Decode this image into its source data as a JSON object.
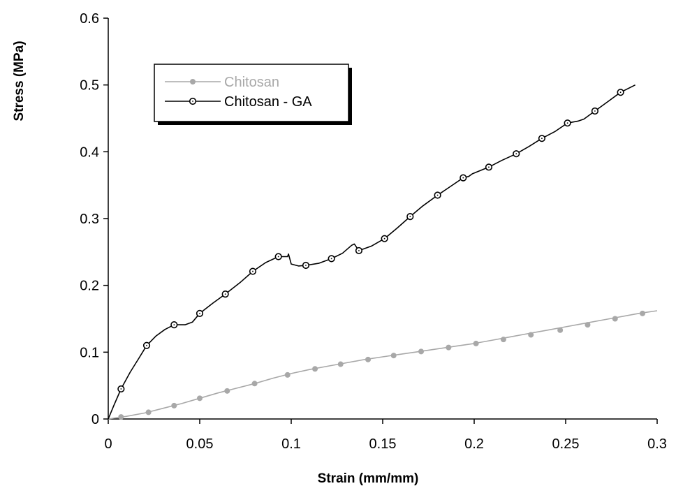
{
  "chart_data": {
    "type": "line",
    "title": "",
    "xlabel": "Strain (mm/mm)",
    "ylabel": "Stress (MPa)",
    "xlim": [
      0,
      0.3
    ],
    "ylim": [
      0,
      0.6
    ],
    "x_ticks": [
      0,
      0.05,
      0.1,
      0.15,
      0.2,
      0.25,
      0.3
    ],
    "x_tick_labels": [
      "0",
      "0.05",
      "0.1",
      "0.15",
      "0.2",
      "0.25",
      "0.3"
    ],
    "y_ticks": [
      0,
      0.1,
      0.2,
      0.3,
      0.4,
      0.5,
      0.6
    ],
    "y_tick_labels": [
      "0",
      "0.1",
      "0.2",
      "0.3",
      "0.4",
      "0.5",
      "0.6"
    ],
    "grid": false,
    "legend_position": "top-left",
    "series": [
      {
        "name": "Chitosan",
        "color": "#a8a8a8",
        "marker": "filled-circle",
        "line": [
          [
            0,
            0
          ],
          [
            0.005,
            0.002
          ],
          [
            0.01,
            0.004
          ],
          [
            0.02,
            0.009
          ],
          [
            0.03,
            0.016
          ],
          [
            0.04,
            0.023
          ],
          [
            0.05,
            0.031
          ],
          [
            0.06,
            0.039
          ],
          [
            0.07,
            0.046
          ],
          [
            0.08,
            0.053
          ],
          [
            0.09,
            0.061
          ],
          [
            0.1,
            0.068
          ],
          [
            0.11,
            0.074
          ],
          [
            0.12,
            0.079
          ],
          [
            0.13,
            0.084
          ],
          [
            0.14,
            0.089
          ],
          [
            0.15,
            0.093
          ],
          [
            0.16,
            0.097
          ],
          [
            0.17,
            0.101
          ],
          [
            0.18,
            0.105
          ],
          [
            0.19,
            0.109
          ],
          [
            0.2,
            0.113
          ],
          [
            0.21,
            0.118
          ],
          [
            0.22,
            0.123
          ],
          [
            0.23,
            0.128
          ],
          [
            0.24,
            0.133
          ],
          [
            0.25,
            0.138
          ],
          [
            0.26,
            0.143
          ],
          [
            0.27,
            0.148
          ],
          [
            0.28,
            0.153
          ],
          [
            0.29,
            0.158
          ],
          [
            0.3,
            0.162
          ]
        ],
        "markers": [
          [
            0.007,
            0.003
          ],
          [
            0.022,
            0.01
          ],
          [
            0.036,
            0.02
          ],
          [
            0.05,
            0.031
          ],
          [
            0.065,
            0.042
          ],
          [
            0.08,
            0.053
          ],
          [
            0.098,
            0.066
          ],
          [
            0.113,
            0.075
          ],
          [
            0.127,
            0.082
          ],
          [
            0.142,
            0.089
          ],
          [
            0.156,
            0.095
          ],
          [
            0.171,
            0.101
          ],
          [
            0.186,
            0.107
          ],
          [
            0.201,
            0.113
          ],
          [
            0.216,
            0.119
          ],
          [
            0.231,
            0.126
          ],
          [
            0.247,
            0.133
          ],
          [
            0.262,
            0.141
          ],
          [
            0.277,
            0.15
          ],
          [
            0.292,
            0.158
          ]
        ]
      },
      {
        "name": "Chitosan - GA",
        "color": "#000000",
        "marker": "open-circle",
        "line": [
          [
            0,
            0
          ],
          [
            0.003,
            0.02
          ],
          [
            0.007,
            0.045
          ],
          [
            0.012,
            0.07
          ],
          [
            0.017,
            0.092
          ],
          [
            0.021,
            0.11
          ],
          [
            0.026,
            0.124
          ],
          [
            0.031,
            0.134
          ],
          [
            0.036,
            0.141
          ],
          [
            0.042,
            0.141
          ],
          [
            0.046,
            0.145
          ],
          [
            0.05,
            0.158
          ],
          [
            0.057,
            0.173
          ],
          [
            0.064,
            0.187
          ],
          [
            0.072,
            0.204
          ],
          [
            0.079,
            0.221
          ],
          [
            0.086,
            0.234
          ],
          [
            0.093,
            0.243
          ],
          [
            0.098,
            0.243
          ],
          [
            0.0985,
            0.247
          ],
          [
            0.1,
            0.232
          ],
          [
            0.104,
            0.229
          ],
          [
            0.108,
            0.23
          ],
          [
            0.115,
            0.233
          ],
          [
            0.122,
            0.24
          ],
          [
            0.128,
            0.248
          ],
          [
            0.133,
            0.26
          ],
          [
            0.1345,
            0.262
          ],
          [
            0.137,
            0.252
          ],
          [
            0.144,
            0.259
          ],
          [
            0.151,
            0.27
          ],
          [
            0.158,
            0.286
          ],
          [
            0.165,
            0.303
          ],
          [
            0.172,
            0.319
          ],
          [
            0.18,
            0.335
          ],
          [
            0.187,
            0.348
          ],
          [
            0.194,
            0.361
          ],
          [
            0.197,
            0.363
          ],
          [
            0.199,
            0.367
          ],
          [
            0.208,
            0.377
          ],
          [
            0.215,
            0.387
          ],
          [
            0.223,
            0.397
          ],
          [
            0.23,
            0.408
          ],
          [
            0.237,
            0.42
          ],
          [
            0.244,
            0.43
          ],
          [
            0.251,
            0.443
          ],
          [
            0.257,
            0.446
          ],
          [
            0.26,
            0.449
          ],
          [
            0.266,
            0.461
          ],
          [
            0.273,
            0.475
          ],
          [
            0.28,
            0.489
          ],
          [
            0.288,
            0.5
          ]
        ],
        "markers": [
          [
            0.007,
            0.045
          ],
          [
            0.021,
            0.11
          ],
          [
            0.036,
            0.141
          ],
          [
            0.05,
            0.158
          ],
          [
            0.064,
            0.187
          ],
          [
            0.079,
            0.221
          ],
          [
            0.093,
            0.243
          ],
          [
            0.108,
            0.23
          ],
          [
            0.122,
            0.24
          ],
          [
            0.137,
            0.252
          ],
          [
            0.151,
            0.27
          ],
          [
            0.165,
            0.303
          ],
          [
            0.18,
            0.335
          ],
          [
            0.194,
            0.361
          ],
          [
            0.208,
            0.377
          ],
          [
            0.223,
            0.397
          ],
          [
            0.237,
            0.42
          ],
          [
            0.251,
            0.443
          ],
          [
            0.266,
            0.461
          ],
          [
            0.28,
            0.489
          ]
        ]
      }
    ]
  }
}
